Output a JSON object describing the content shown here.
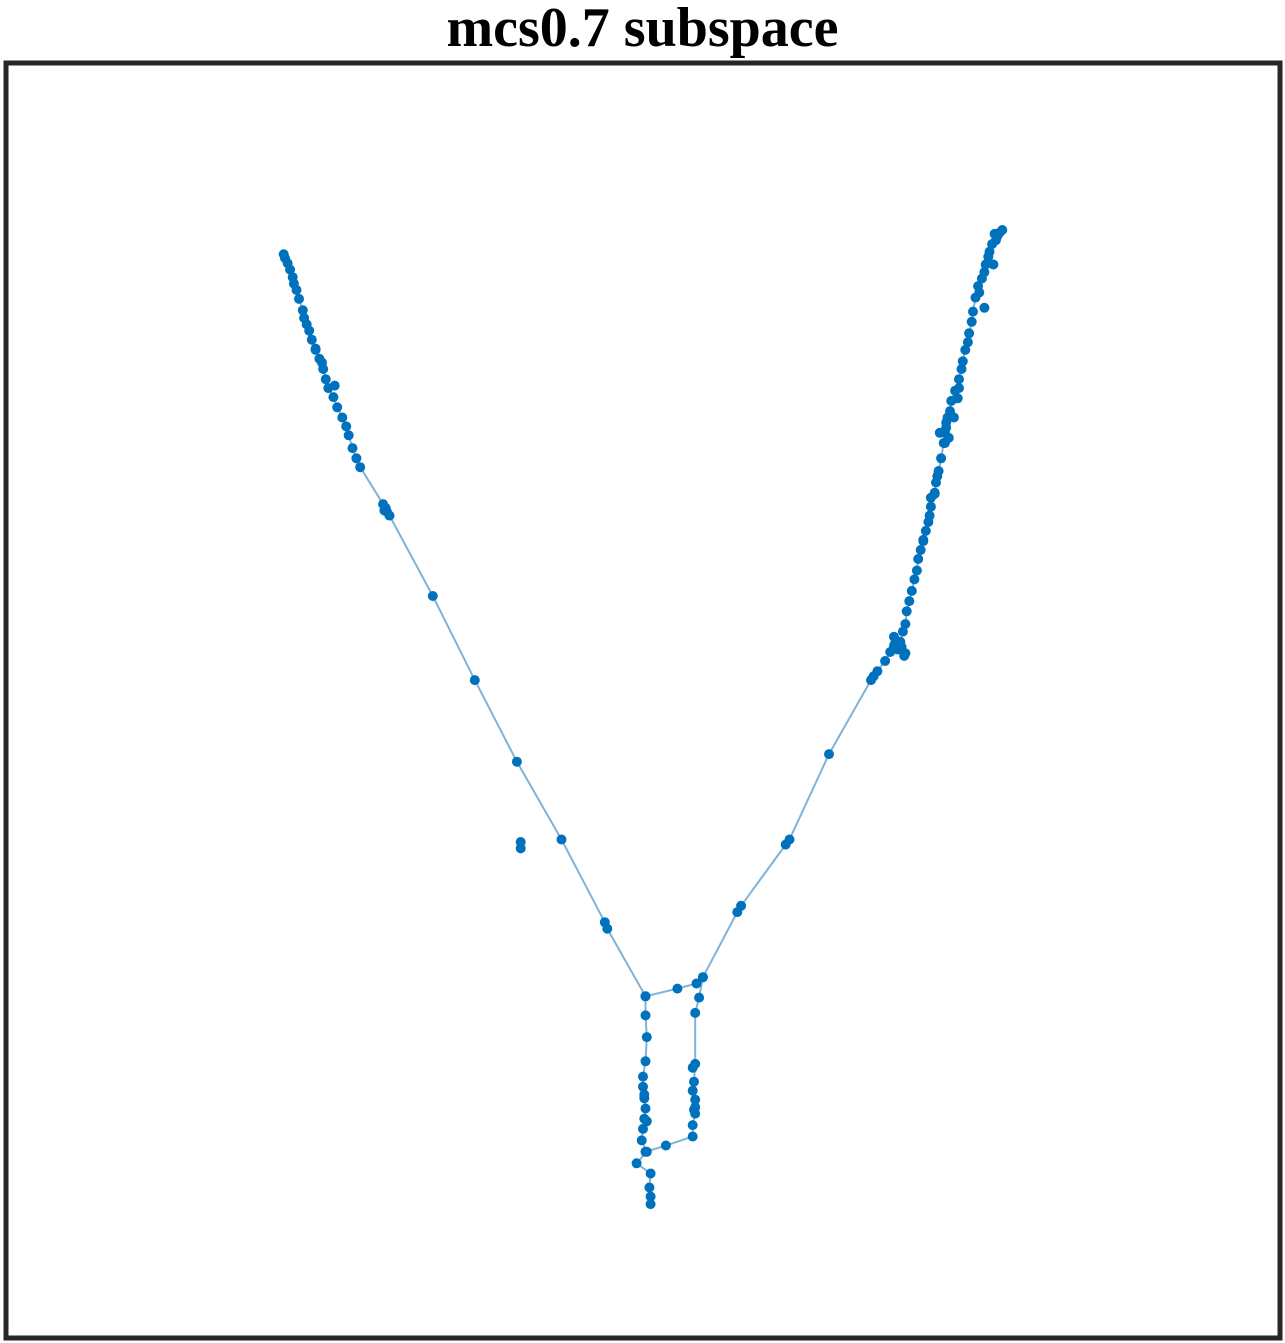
{
  "chart_data": {
    "type": "scatter",
    "title": "mcs0.7 subspace",
    "xlabel": "",
    "ylabel": "",
    "xlim": [
      0,
      1
    ],
    "ylim": [
      0,
      1
    ],
    "axis_ticks": "none",
    "grid": false,
    "legend": "none",
    "colors": {
      "points": "#0072bd",
      "lines": "#7fb3d9",
      "frame": "#262626"
    },
    "series": [
      {
        "style": "points-connected",
        "x": [
          0.218,
          0.219,
          0.221,
          0.223,
          0.225,
          0.226,
          0.228,
          0.23,
          0.233,
          0.234,
          0.236,
          0.238,
          0.24,
          0.243,
          0.246,
          0.249,
          0.251,
          0.253,
          0.257,
          0.26,
          0.264,
          0.267,
          0.269,
          0.272,
          0.275,
          0.278,
          0.296,
          0.298,
          0.299,
          0.301,
          0.335,
          0.368,
          0.401,
          0.436,
          0.47,
          0.472,
          0.502,
          0.502,
          0.503,
          0.502,
          0.5,
          0.5,
          0.501,
          0.502,
          0.501,
          0.5,
          0.499,
          0.503,
          0.495,
          0.506,
          0.505,
          0.506,
          0.506
        ],
        "y": [
          0.85,
          0.847,
          0.843,
          0.838,
          0.832,
          0.827,
          0.822,
          0.815,
          0.806,
          0.8,
          0.795,
          0.79,
          0.783,
          0.775,
          0.768,
          0.76,
          0.752,
          0.745,
          0.738,
          0.73,
          0.722,
          0.715,
          0.708,
          0.698,
          0.69,
          0.683,
          0.654,
          0.651,
          0.648,
          0.645,
          0.582,
          0.516,
          0.452,
          0.391,
          0.326,
          0.321,
          0.268,
          0.253,
          0.236,
          0.217,
          0.205,
          0.197,
          0.188,
          0.18,
          0.172,
          0.164,
          0.155,
          0.146,
          0.137,
          0.129,
          0.118,
          0.111,
          0.105
        ]
      },
      {
        "style": "points-connected",
        "x": [
          0.502,
          0.527,
          0.542,
          0.547,
          0.544,
          0.541,
          0.541,
          0.54,
          0.539,
          0.541,
          0.541,
          0.541,
          0.539,
          0.539,
          0.518,
          0.502
        ],
        "y": [
          0.268,
          0.274,
          0.278,
          0.283,
          0.267,
          0.255,
          0.215,
          0.201,
          0.194,
          0.187,
          0.181,
          0.176,
          0.167,
          0.158,
          0.151,
          0.146
        ]
      },
      {
        "style": "points-connected",
        "x": [
          0.547,
          0.574,
          0.577,
          0.612,
          0.615,
          0.646,
          0.679,
          0.684,
          0.69,
          0.694,
          0.697,
          0.7,
          0.702,
          0.704,
          0.706,
          0.707,
          0.709,
          0.711,
          0.713,
          0.715,
          0.716,
          0.718,
          0.72,
          0.722,
          0.724,
          0.725,
          0.726,
          0.729,
          0.73,
          0.732,
          0.734,
          0.736,
          0.737,
          0.738,
          0.739,
          0.741,
          0.742,
          0.745,
          0.748,
          0.75,
          0.751,
          0.753,
          0.755,
          0.756,
          0.758,
          0.759,
          0.761,
          0.763,
          0.766,
          0.768,
          0.769,
          0.771,
          0.772,
          0.774,
          0.777,
          0.778,
          0.78,
          0.782
        ],
        "y": [
          0.283,
          0.334,
          0.339,
          0.387,
          0.391,
          0.458,
          0.516,
          0.523,
          0.531,
          0.538,
          0.543,
          0.54,
          0.546,
          0.554,
          0.56,
          0.57,
          0.578,
          0.586,
          0.595,
          0.602,
          0.611,
          0.618,
          0.626,
          0.633,
          0.64,
          0.645,
          0.652,
          0.662,
          0.671,
          0.68,
          0.69,
          0.702,
          0.71,
          0.718,
          0.722,
          0.727,
          0.735,
          0.743,
          0.752,
          0.76,
          0.766,
          0.775,
          0.781,
          0.788,
          0.797,
          0.805,
          0.816,
          0.825,
          0.831,
          0.836,
          0.842,
          0.848,
          0.852,
          0.858,
          0.861,
          0.864,
          0.867,
          0.869
        ]
      },
      {
        "style": "points",
        "x": [
          0.699,
          0.703,
          0.706,
          0.705,
          0.697,
          0.737,
          0.733,
          0.738,
          0.74,
          0.744,
          0.729,
          0.726,
          0.748,
          0.775,
          0.776,
          0.764,
          0.768,
          0.747,
          0.731,
          0.72,
          0.243,
          0.248,
          0.258,
          0.297,
          0.404,
          0.404,
          0.501,
          0.503,
          0.54,
          0.539,
          0.681,
          0.698,
          0.702
        ],
        "y": [
          0.545,
          0.542,
          0.537,
          0.535,
          0.55,
          0.702,
          0.71,
          0.714,
          0.706,
          0.722,
          0.663,
          0.659,
          0.745,
          0.842,
          0.866,
          0.82,
          0.808,
          0.737,
          0.676,
          0.625,
          0.776,
          0.765,
          0.747,
          0.649,
          0.384,
          0.389,
          0.191,
          0.17,
          0.179,
          0.212,
          0.519,
          0.545,
          0.54
        ]
      }
    ]
  }
}
